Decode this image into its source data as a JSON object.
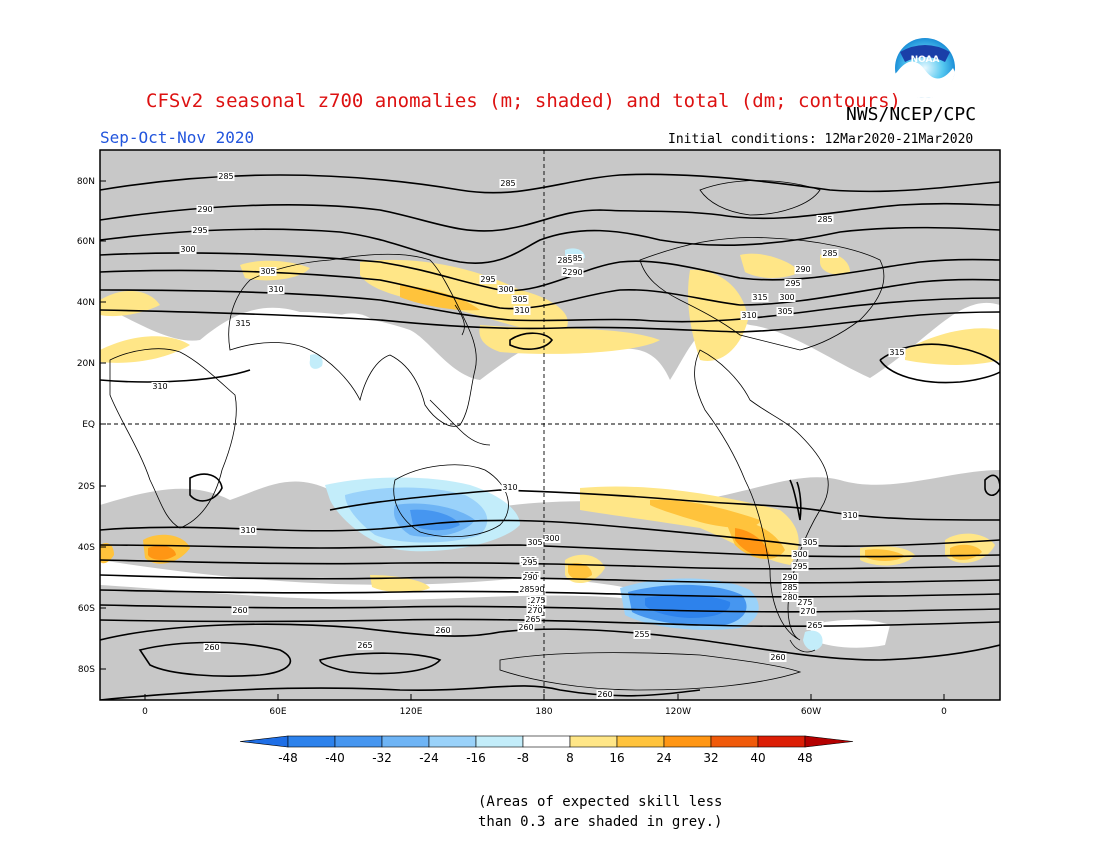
{
  "title": "CFSv2 seasonal z700 anomalies (m; shaded) and total (dm; contours)",
  "agency": "NWS/NCEP/CPC",
  "season": "Sep-Oct-Nov 2020",
  "initial_conditions": "Initial conditions: 12Mar2020-21Mar2020",
  "logo_text": "NOAA",
  "lat_labels": [
    "80N",
    "60N",
    "40N",
    "20N",
    "EQ",
    "20S",
    "40S",
    "60S",
    "80S"
  ],
  "lon_labels": [
    "0",
    "60E",
    "120E",
    "180",
    "120W",
    "60W",
    "0"
  ],
  "colorbar": {
    "labels": [
      "-48",
      "-40",
      "-32",
      "-24",
      "-16",
      "-8",
      "8",
      "16",
      "24",
      "32",
      "40",
      "48"
    ],
    "colors": [
      "#1e6ee6",
      "#2d82ec",
      "#4696f0",
      "#6eb4f5",
      "#9ad2fa",
      "#c3edfa",
      "#ffffff",
      "#ffe687",
      "#ffc33c",
      "#ff9614",
      "#f05a0a",
      "#dc1e05",
      "#b40000"
    ]
  },
  "contour_labels": [
    "285",
    "285",
    "285",
    "290",
    "295",
    "300",
    "305",
    "310",
    "315",
    "285",
    "290",
    "295",
    "300",
    "305",
    "310",
    "285",
    "290",
    "285",
    "290",
    "295",
    "300",
    "305",
    "310",
    "315",
    "315",
    "310",
    "305",
    "300",
    "295",
    "290",
    "285",
    "280",
    "310",
    "300",
    "295",
    "290",
    "285",
    "280",
    "275",
    "270",
    "265",
    "260",
    "310",
    "305",
    "300",
    "295",
    "290",
    "285",
    "280",
    "275",
    "270",
    "265",
    "260",
    "260",
    "260",
    "265",
    "255",
    "260",
    "260",
    "310"
  ],
  "note_lines": [
    "(Areas of expected skill less",
    "than 0.3 are shaded in grey.)"
  ],
  "colors": {
    "skill_grey": "#c8c8c8",
    "title_red": "#dd1111",
    "season_blue": "#2255dd"
  }
}
